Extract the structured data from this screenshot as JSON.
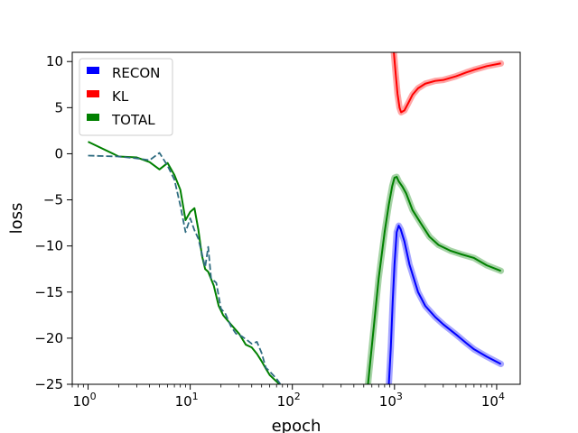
{
  "chart_data": {
    "type": "line",
    "xscale": "log",
    "xlabel": "epoch",
    "ylabel": "loss",
    "xlim": [
      0.7,
      17000
    ],
    "ylim": [
      -25,
      11
    ],
    "x_ticks": [
      1,
      10,
      100,
      1000,
      10000
    ],
    "x_tick_labels": [
      {
        "base": "10",
        "exp": "0"
      },
      {
        "base": "10",
        "exp": "1"
      },
      {
        "base": "10",
        "exp": "2"
      },
      {
        "base": "10",
        "exp": "3"
      },
      {
        "base": "10",
        "exp": "4"
      }
    ],
    "y_ticks": [
      10,
      5,
      0,
      -5,
      -10,
      -15,
      -20,
      -25
    ],
    "y_tick_labels": [
      "10",
      "5",
      "0",
      "−5",
      "−10",
      "−15",
      "−20",
      "−25"
    ],
    "legend": {
      "placement": "upper-left",
      "entries": [
        {
          "label": "RECON",
          "color": "#0000ff"
        },
        {
          "label": "KL",
          "color": "#ff0000"
        },
        {
          "label": "TOTAL",
          "color": "#008000"
        }
      ]
    },
    "series": [
      {
        "name": "TOTAL",
        "color": "#008000",
        "style": "solid",
        "width": 2,
        "points": [
          [
            1,
            1.3
          ],
          [
            2,
            -0.3
          ],
          [
            3,
            -0.4
          ],
          [
            4,
            -0.9
          ],
          [
            5,
            -1.7
          ],
          [
            6,
            -1.0
          ],
          [
            7,
            -2.3
          ],
          [
            8,
            -3.9
          ],
          [
            9,
            -7.2
          ],
          [
            10,
            -6.3
          ],
          [
            11,
            -5.9
          ],
          [
            12,
            -8.2
          ],
          [
            13,
            -11
          ],
          [
            14,
            -12.5
          ],
          [
            15,
            -12.8
          ],
          [
            17,
            -14.3
          ],
          [
            19,
            -16.5
          ],
          [
            21,
            -17.5
          ],
          [
            25,
            -18.5
          ],
          [
            30,
            -19.5
          ],
          [
            35,
            -20.7
          ],
          [
            40,
            -21
          ],
          [
            45,
            -21.7
          ],
          [
            50,
            -22.5
          ],
          [
            55,
            -23.3
          ],
          [
            60,
            -24
          ],
          [
            70,
            -24.7
          ],
          [
            80,
            -25.3
          ]
        ]
      },
      {
        "name": "",
        "color": "#2e6b80",
        "style": "dashed",
        "width": 1.8,
        "points": [
          [
            1,
            -0.2
          ],
          [
            2,
            -0.3
          ],
          [
            3,
            -0.5
          ],
          [
            4,
            -0.7
          ],
          [
            5,
            0.1
          ],
          [
            6,
            -1.3
          ],
          [
            7,
            -2.8
          ],
          [
            8,
            -5.6
          ],
          [
            9,
            -8.5
          ],
          [
            10,
            -7.0
          ],
          [
            11,
            -8.3
          ],
          [
            12,
            -9.2
          ],
          [
            13,
            -10.8
          ],
          [
            14,
            -12.3
          ],
          [
            15,
            -10.1
          ],
          [
            16,
            -13.5
          ],
          [
            18,
            -14
          ],
          [
            20,
            -16.8
          ],
          [
            22,
            -17.3
          ],
          [
            25,
            -18.7
          ],
          [
            28,
            -19.5
          ],
          [
            32,
            -19.8
          ],
          [
            36,
            -20.2
          ],
          [
            40,
            -20.6
          ],
          [
            45,
            -20.4
          ],
          [
            50,
            -21.6
          ],
          [
            55,
            -23.2
          ],
          [
            60,
            -23.6
          ],
          [
            70,
            -24.4
          ],
          [
            80,
            -25.3
          ]
        ]
      },
      {
        "name": "KL",
        "color": "#ff0000",
        "style": "solid",
        "width": 2,
        "band": true,
        "points": [
          [
            985,
            11
          ],
          [
            1030,
            8.5
          ],
          [
            1070,
            6.5
          ],
          [
            1120,
            5.0
          ],
          [
            1160,
            4.5
          ],
          [
            1250,
            4.7
          ],
          [
            1350,
            5.4
          ],
          [
            1500,
            6.4
          ],
          [
            1700,
            7.1
          ],
          [
            2000,
            7.6
          ],
          [
            2500,
            7.9
          ],
          [
            3000,
            8.0
          ],
          [
            4000,
            8.4
          ],
          [
            5000,
            8.8
          ],
          [
            6000,
            9.1
          ],
          [
            8000,
            9.5
          ],
          [
            11000,
            9.8
          ]
        ]
      },
      {
        "name": "TOTAL",
        "color": "#008000",
        "style": "solid",
        "width": 2,
        "band": true,
        "points": [
          [
            550,
            -25
          ],
          [
            700,
            -13.5
          ],
          [
            800,
            -8.5
          ],
          [
            880,
            -5.5
          ],
          [
            950,
            -3.5
          ],
          [
            1000,
            -2.6
          ],
          [
            1050,
            -2.5
          ],
          [
            1100,
            -3.0
          ],
          [
            1200,
            -3.6
          ],
          [
            1300,
            -4.3
          ],
          [
            1500,
            -6.1
          ],
          [
            1800,
            -7.5
          ],
          [
            2200,
            -9.0
          ],
          [
            2700,
            -9.9
          ],
          [
            3500,
            -10.5
          ],
          [
            4500,
            -10.9
          ],
          [
            6000,
            -11.3
          ],
          [
            8000,
            -12.1
          ],
          [
            11000,
            -12.7
          ]
        ]
      },
      {
        "name": "RECON",
        "color": "#0000ff",
        "style": "solid",
        "width": 2,
        "band": true,
        "points": [
          [
            880,
            -25
          ],
          [
            920,
            -21
          ],
          [
            960,
            -16
          ],
          [
            1000,
            -12
          ],
          [
            1050,
            -8.5
          ],
          [
            1100,
            -7.8
          ],
          [
            1150,
            -8.2
          ],
          [
            1250,
            -9.5
          ],
          [
            1400,
            -12
          ],
          [
            1700,
            -15
          ],
          [
            2000,
            -16.5
          ],
          [
            2500,
            -17.7
          ],
          [
            3000,
            -18.5
          ],
          [
            4000,
            -19.6
          ],
          [
            5000,
            -20.5
          ],
          [
            6000,
            -21.2
          ],
          [
            8000,
            -22
          ],
          [
            11000,
            -22.8
          ]
        ]
      }
    ]
  }
}
